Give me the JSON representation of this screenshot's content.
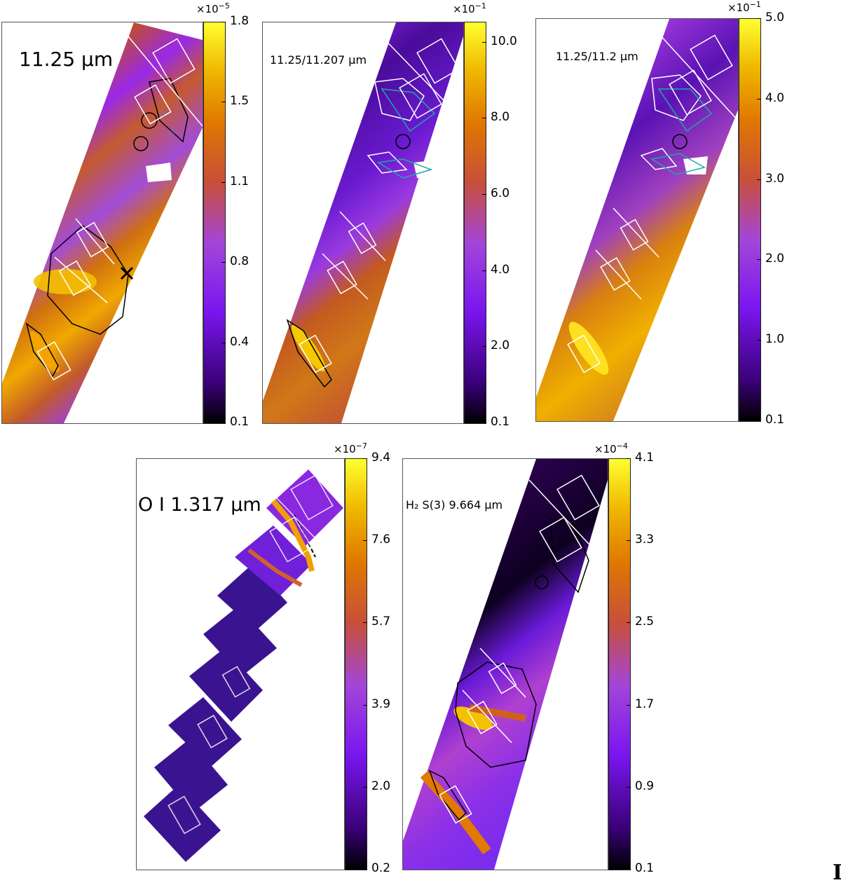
{
  "colors": {
    "colormap": [
      "#000000",
      "#3a0078",
      "#7a16f0",
      "#a346d8",
      "#c84f3a",
      "#e07800",
      "#f0b800",
      "#ffff30"
    ],
    "overlay_white": "#ffffff",
    "overlay_black": "#000000",
    "overlay_cyan": "#1fa7a7"
  },
  "panels": [
    {
      "id": "p1",
      "label": "11.25 μm",
      "exponent_base": "×10",
      "exponent_power": "−5",
      "ticks": [
        "1.8",
        "1.5",
        "1.1",
        "0.8",
        "0.4",
        "0.1"
      ],
      "tick_fractions": [
        1.0,
        0.8,
        0.6,
        0.4,
        0.2,
        0.0
      ]
    },
    {
      "id": "p2",
      "label": "11.25/11.207 μm",
      "exponent_base": "×10",
      "exponent_power": "−1",
      "ticks": [
        "10.0",
        "8.0",
        "6.0",
        "4.0",
        "2.0",
        "0.1"
      ],
      "tick_fractions": [
        0.95,
        0.76,
        0.57,
        0.38,
        0.19,
        0.0
      ]
    },
    {
      "id": "p3",
      "label": "11.25/11.2 μm",
      "exponent_base": "×10",
      "exponent_power": "−1",
      "ticks": [
        "5.0",
        "4.0",
        "3.0",
        "2.0",
        "1.0",
        "0.1"
      ],
      "tick_fractions": [
        1.0,
        0.8,
        0.6,
        0.4,
        0.2,
        0.0
      ]
    },
    {
      "id": "p4",
      "label": "O I 1.317 μm",
      "exponent_base": "×10",
      "exponent_power": "−7",
      "ticks": [
        "9.4",
        "7.6",
        "5.7",
        "3.9",
        "2.0",
        "0.2"
      ],
      "tick_fractions": [
        1.0,
        0.8,
        0.6,
        0.4,
        0.2,
        0.0
      ]
    },
    {
      "id": "p5",
      "label": "H₂ S(3) 9.664 μm",
      "exponent_base": "×10",
      "exponent_power": "−4",
      "ticks": [
        "4.1",
        "3.3",
        "2.5",
        "1.7",
        "0.9",
        "0.1"
      ],
      "tick_fractions": [
        1.0,
        0.8,
        0.6,
        0.4,
        0.2,
        0.0
      ]
    }
  ],
  "edge_glyph": "I"
}
